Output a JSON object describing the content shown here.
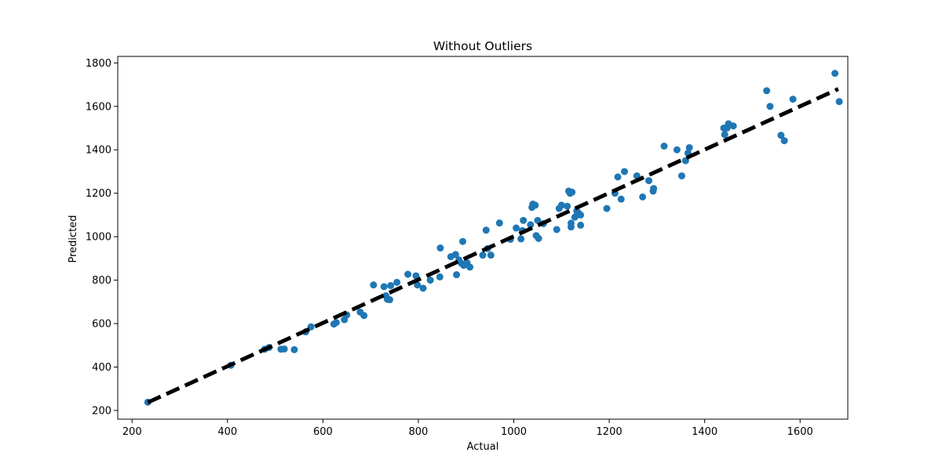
{
  "chart_data": {
    "type": "scatter",
    "title": "Without Outliers",
    "xlabel": "Actual",
    "ylabel": "Predicted",
    "xlim": [
      170,
      1700
    ],
    "ylim": [
      160,
      1830
    ],
    "x_ticks": [
      200,
      400,
      600,
      800,
      1000,
      1200,
      1400,
      1600
    ],
    "y_ticks": [
      200,
      400,
      600,
      800,
      1000,
      1200,
      1400,
      1600,
      1800
    ],
    "grid": false,
    "legend": "none",
    "colors": {
      "points": "#1f77b4",
      "reference_line": "#000000"
    },
    "reference_line": {
      "style": "dashed",
      "from": [
        233,
        237
      ],
      "to": [
        1680,
        1680
      ]
    },
    "series": [
      {
        "points": [
          [
            233,
            238
          ],
          [
            407,
            408
          ],
          [
            478,
            482
          ],
          [
            487,
            490
          ],
          [
            512,
            482
          ],
          [
            519,
            483
          ],
          [
            540,
            480
          ],
          [
            564,
            562
          ],
          [
            575,
            585
          ],
          [
            623,
            598
          ],
          [
            628,
            605
          ],
          [
            645,
            618
          ],
          [
            650,
            640
          ],
          [
            678,
            653
          ],
          [
            686,
            637
          ],
          [
            706,
            778
          ],
          [
            728,
            770
          ],
          [
            732,
            728
          ],
          [
            735,
            712
          ],
          [
            740,
            710
          ],
          [
            742,
            775
          ],
          [
            755,
            790
          ],
          [
            778,
            827
          ],
          [
            795,
            820
          ],
          [
            798,
            778
          ],
          [
            810,
            763
          ],
          [
            825,
            800
          ],
          [
            845,
            815
          ],
          [
            846,
            948
          ],
          [
            868,
            908
          ],
          [
            878,
            918
          ],
          [
            880,
            825
          ],
          [
            885,
            893
          ],
          [
            890,
            878
          ],
          [
            893,
            978
          ],
          [
            895,
            868
          ],
          [
            902,
            880
          ],
          [
            908,
            860
          ],
          [
            935,
            915
          ],
          [
            942,
            1030
          ],
          [
            945,
            945
          ],
          [
            952,
            915
          ],
          [
            970,
            1063
          ],
          [
            993,
            988
          ],
          [
            1005,
            1040
          ],
          [
            1015,
            990
          ],
          [
            1018,
            1028
          ],
          [
            1020,
            1075
          ],
          [
            1035,
            1055
          ],
          [
            1038,
            1135
          ],
          [
            1040,
            1150
          ],
          [
            1045,
            1145
          ],
          [
            1047,
            1005
          ],
          [
            1050,
            1075
          ],
          [
            1052,
            992
          ],
          [
            1062,
            1060
          ],
          [
            1090,
            1033
          ],
          [
            1095,
            1130
          ],
          [
            1100,
            1145
          ],
          [
            1112,
            1140
          ],
          [
            1115,
            1210
          ],
          [
            1118,
            1200
          ],
          [
            1120,
            1045
          ],
          [
            1120,
            1062
          ],
          [
            1122,
            1205
          ],
          [
            1128,
            1090
          ],
          [
            1132,
            1118
          ],
          [
            1135,
            1110
          ],
          [
            1140,
            1053
          ],
          [
            1140,
            1100
          ],
          [
            1195,
            1130
          ],
          [
            1212,
            1200
          ],
          [
            1218,
            1275
          ],
          [
            1225,
            1173
          ],
          [
            1232,
            1300
          ],
          [
            1258,
            1280
          ],
          [
            1270,
            1183
          ],
          [
            1283,
            1258
          ],
          [
            1292,
            1210
          ],
          [
            1293,
            1222
          ],
          [
            1315,
            1417
          ],
          [
            1342,
            1400
          ],
          [
            1352,
            1280
          ],
          [
            1360,
            1350
          ],
          [
            1365,
            1385
          ],
          [
            1368,
            1410
          ],
          [
            1440,
            1500
          ],
          [
            1442,
            1470
          ],
          [
            1447,
            1500
          ],
          [
            1450,
            1520
          ],
          [
            1460,
            1510
          ],
          [
            1530,
            1672
          ],
          [
            1537,
            1600
          ],
          [
            1560,
            1467
          ],
          [
            1567,
            1442
          ],
          [
            1585,
            1633
          ],
          [
            1673,
            1752
          ],
          [
            1682,
            1622
          ]
        ]
      }
    ]
  }
}
